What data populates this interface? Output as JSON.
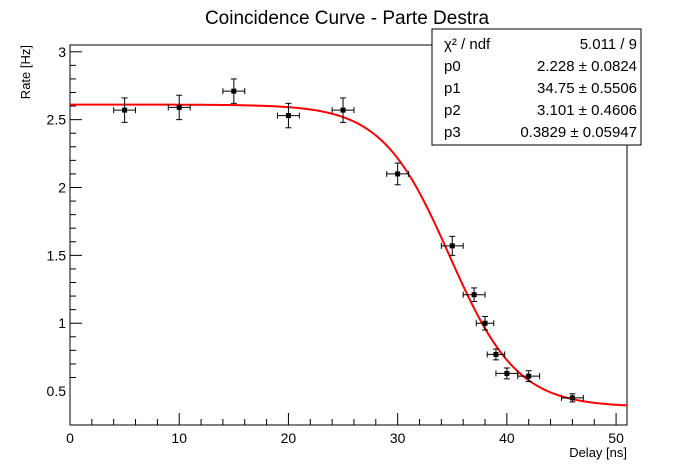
{
  "chart_data": {
    "type": "scatter",
    "title": "Coincidence Curve - Parte Destra",
    "xlabel": "Delay [ns]",
    "ylabel": "Rate [Hz]",
    "xlim": [
      0,
      51
    ],
    "ylim": [
      0.25,
      3.05
    ],
    "x_ticks": [
      0,
      10,
      20,
      30,
      40,
      50
    ],
    "x_tick_labels": [
      "0",
      "10",
      "20",
      "30",
      "40",
      "50"
    ],
    "y_ticks": [
      0.5,
      1,
      1.5,
      2,
      2.5,
      3
    ],
    "y_tick_labels": [
      "0.5",
      "1",
      "1.5",
      "2",
      "2.5",
      "3"
    ],
    "series": [
      {
        "name": "data",
        "x": [
          5,
          10,
          15,
          20,
          25,
          30,
          35,
          37,
          38,
          39,
          40,
          42,
          46
        ],
        "y": [
          2.57,
          2.59,
          2.71,
          2.53,
          2.57,
          2.1,
          1.57,
          1.21,
          1.0,
          0.77,
          0.63,
          0.61,
          0.45
        ],
        "xerr": [
          1,
          1,
          1,
          1,
          1,
          1,
          1,
          1,
          0.8,
          0.8,
          1,
          1,
          1
        ],
        "yerr": [
          0.09,
          0.09,
          0.09,
          0.09,
          0.09,
          0.08,
          0.07,
          0.05,
          0.05,
          0.04,
          0.04,
          0.04,
          0.03
        ]
      }
    ],
    "fit": {
      "name": "fit",
      "color": "#ff0000",
      "model": "p0/(1+exp((x-p1)/p2))+p3",
      "params": {
        "p0": 2.228,
        "p1": 34.75,
        "p2": 3.101,
        "p3": 0.3829
      },
      "x_range": [
        0,
        51
      ]
    },
    "stats_box": {
      "rows": [
        {
          "label": "χ² / ndf",
          "value": "5.011 / 9"
        },
        {
          "label": "p0",
          "value": "2.228 ± 0.0824"
        },
        {
          "label": "p1",
          "value": "34.75 ± 0.5506"
        },
        {
          "label": "p2",
          "value": "3.101 ± 0.4606"
        },
        {
          "label": "p3",
          "value": "0.3829 ± 0.05947"
        }
      ]
    }
  }
}
